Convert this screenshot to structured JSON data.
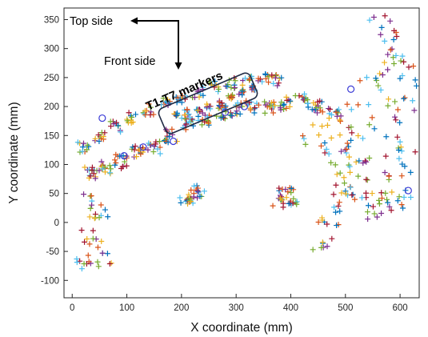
{
  "chart_data": {
    "type": "scatter",
    "title": "",
    "xlabel": "X coordinate (mm)",
    "ylabel": "Y coordinate (mm)",
    "xlim": [
      -15,
      635
    ],
    "ylim": [
      -130,
      370
    ],
    "x_ticks": [
      0,
      100,
      200,
      300,
      400,
      500,
      600
    ],
    "y_ticks": [
      -100,
      -50,
      0,
      50,
      100,
      150,
      200,
      250,
      300,
      350
    ],
    "grid": false,
    "legend": "none",
    "marker": "+",
    "palette": [
      "#0072BD",
      "#D95319",
      "#EDB120",
      "#7E2F8E",
      "#77AC30",
      "#4DBEEE",
      "#A2142F"
    ],
    "clusters": [
      {
        "region": "lower-arc",
        "points": [
          [
            35,
            85
          ],
          [
            60,
            95
          ],
          [
            90,
            105
          ],
          [
            120,
            120
          ],
          [
            150,
            130
          ],
          [
            180,
            150
          ],
          [
            210,
            170
          ],
          [
            240,
            180
          ],
          [
            270,
            190
          ],
          [
            300,
            195
          ],
          [
            330,
            198
          ],
          [
            360,
            200
          ],
          [
            390,
            205
          ],
          [
            420,
            210
          ],
          [
            450,
            200
          ],
          [
            480,
            185
          ]
        ]
      },
      {
        "region": "upper-arc",
        "points": [
          [
            20,
            130
          ],
          [
            50,
            150
          ],
          [
            80,
            165
          ],
          [
            110,
            180
          ],
          [
            140,
            195
          ],
          [
            170,
            205
          ],
          [
            200,
            215
          ],
          [
            230,
            225
          ],
          [
            260,
            235
          ],
          [
            290,
            240
          ],
          [
            320,
            245
          ],
          [
            350,
            250
          ],
          [
            375,
            245
          ]
        ]
      },
      {
        "region": "T1-T7 band",
        "points": [
          [
            190,
            185
          ],
          [
            210,
            190
          ],
          [
            230,
            195
          ],
          [
            250,
            200
          ],
          [
            270,
            205
          ],
          [
            290,
            215
          ],
          [
            310,
            225
          ],
          [
            330,
            232
          ]
        ]
      },
      {
        "region": "left-lower-cloud",
        "points": [
          [
            25,
            40
          ],
          [
            40,
            20
          ],
          [
            55,
            10
          ],
          [
            30,
            -20
          ],
          [
            45,
            -40
          ],
          [
            60,
            -60
          ],
          [
            35,
            -65
          ],
          [
            20,
            -75
          ]
        ]
      },
      {
        "region": "small-cluster-200",
        "points": [
          [
            205,
            35
          ],
          [
            215,
            45
          ],
          [
            225,
            60
          ],
          [
            235,
            50
          ],
          [
            220,
            40
          ]
        ]
      },
      {
        "region": "small-cluster-400",
        "points": [
          [
            375,
            35
          ],
          [
            385,
            50
          ],
          [
            395,
            60
          ],
          [
            405,
            40
          ],
          [
            390,
            30
          ]
        ]
      },
      {
        "region": "right-cloud",
        "points": [
          [
            450,
            150
          ],
          [
            480,
            120
          ],
          [
            500,
            80
          ],
          [
            520,
            50
          ],
          [
            540,
            30
          ],
          [
            560,
            100
          ],
          [
            580,
            150
          ],
          [
            600,
            200
          ],
          [
            610,
            260
          ],
          [
            590,
            300
          ],
          [
            570,
            330
          ],
          [
            550,
            240
          ],
          [
            530,
            180
          ],
          [
            510,
            130
          ],
          [
            490,
            60
          ],
          [
            470,
            20
          ],
          [
            460,
            -20
          ],
          [
            620,
            120
          ],
          [
            600,
            60
          ],
          [
            580,
            20
          ]
        ]
      }
    ],
    "circle_markers": [
      [
        55,
        180
      ],
      [
        95,
        115
      ],
      [
        185,
        140
      ],
      [
        280,
        190
      ],
      [
        315,
        200
      ],
      [
        510,
        230
      ],
      [
        615,
        55
      ],
      [
        130,
        130
      ]
    ]
  },
  "annotations": {
    "top_side": "Top side",
    "front_side": "Front side",
    "callout": "T1-T7 markers"
  }
}
